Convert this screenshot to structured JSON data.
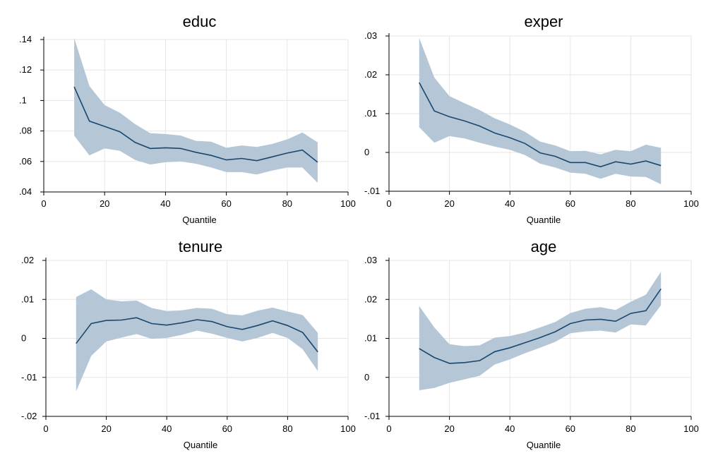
{
  "chart_data": [
    {
      "type": "line",
      "title": "educ",
      "xlabel": "Quantile",
      "ylabel": "",
      "xlim": [
        0,
        100
      ],
      "ylim": [
        0.04,
        0.14
      ],
      "xticks": [
        0,
        20,
        40,
        60,
        80,
        100
      ],
      "xtick_labels": [
        "0",
        "20",
        "40",
        "60",
        "80",
        "100"
      ],
      "yticks": [
        0.04,
        0.06,
        0.08,
        0.1,
        0.12,
        0.14
      ],
      "ytick_labels": [
        ".04",
        ".06",
        ".08",
        ".1",
        ".12",
        ".14"
      ],
      "grid": true,
      "x": [
        10,
        15,
        20,
        25,
        30,
        35,
        40,
        45,
        50,
        55,
        60,
        65,
        70,
        75,
        80,
        85,
        90
      ],
      "series": [
        {
          "values": [
            0.109,
            0.0865,
            0.083,
            0.0795,
            0.0725,
            0.0685,
            0.069,
            0.0685,
            0.066,
            0.064,
            0.061,
            0.062,
            0.0605,
            0.063,
            0.0655,
            0.0675,
            0.0595
          ]
        }
      ],
      "band_upper": [
        0.141,
        0.1095,
        0.097,
        0.092,
        0.0845,
        0.0785,
        0.078,
        0.077,
        0.0735,
        0.073,
        0.069,
        0.0705,
        0.0695,
        0.0715,
        0.0745,
        0.079,
        0.0725
      ],
      "band_lower": [
        0.077,
        0.064,
        0.0685,
        0.067,
        0.061,
        0.058,
        0.0595,
        0.06,
        0.0585,
        0.056,
        0.053,
        0.053,
        0.0515,
        0.054,
        0.056,
        0.056,
        0.046
      ],
      "colors": {
        "line": "#1a476f",
        "band": "#b5c7d6"
      }
    },
    {
      "type": "line",
      "title": "exper",
      "xlabel": "Quantile",
      "ylabel": "",
      "xlim": [
        0,
        100
      ],
      "ylim": [
        -0.01,
        0.03
      ],
      "xticks": [
        0,
        20,
        40,
        60,
        80,
        100
      ],
      "xtick_labels": [
        "0",
        "20",
        "40",
        "60",
        "80",
        "100"
      ],
      "yticks": [
        -0.01,
        0,
        0.01,
        0.02,
        0.03
      ],
      "ytick_labels": [
        "-.01",
        "0",
        ".01",
        ".02",
        ".03"
      ],
      "grid": true,
      "x": [
        10,
        15,
        20,
        25,
        30,
        35,
        40,
        45,
        50,
        55,
        60,
        65,
        70,
        75,
        80,
        85,
        90
      ],
      "series": [
        {
          "values": [
            0.018,
            0.0107,
            0.0092,
            0.0081,
            0.0068,
            0.005,
            0.0038,
            0.0023,
            -0.0001,
            -0.001,
            -0.0026,
            -0.0026,
            -0.0037,
            -0.0024,
            -0.003,
            -0.0022,
            -0.0034
          ]
        }
      ],
      "band_upper": [
        0.0295,
        0.0193,
        0.0145,
        0.0127,
        0.0109,
        0.0088,
        0.0072,
        0.0053,
        0.0028,
        0.0018,
        0.0003,
        0.0004,
        -0.0005,
        0.0007,
        0.0003,
        0.002,
        0.0012
      ],
      "band_lower": [
        0.0065,
        0.0025,
        0.0042,
        0.0036,
        0.0025,
        0.0015,
        0.0007,
        -0.0007,
        -0.0029,
        -0.0039,
        -0.0052,
        -0.0055,
        -0.0068,
        -0.0055,
        -0.0062,
        -0.0063,
        -0.0082
      ],
      "colors": {
        "line": "#1a476f",
        "band": "#b5c7d6"
      }
    },
    {
      "type": "line",
      "title": "tenure",
      "xlabel": "Quantile",
      "ylabel": "",
      "xlim": [
        0,
        100
      ],
      "ylim": [
        -0.02,
        0.02
      ],
      "xticks": [
        0,
        20,
        40,
        60,
        80,
        100
      ],
      "xtick_labels": [
        "0",
        "20",
        "40",
        "60",
        "80",
        "100"
      ],
      "yticks": [
        -0.02,
        -0.01,
        0,
        0.01,
        0.02
      ],
      "ytick_labels": [
        "-.02",
        "-.01",
        "0",
        ".01",
        ".02"
      ],
      "grid": true,
      "x": [
        10,
        15,
        20,
        25,
        30,
        35,
        40,
        45,
        50,
        55,
        60,
        65,
        70,
        75,
        80,
        85,
        90
      ],
      "series": [
        {
          "values": [
            -0.0013,
            0.0038,
            0.0046,
            0.0047,
            0.0053,
            0.0038,
            0.0034,
            0.004,
            0.0048,
            0.0043,
            0.003,
            0.0023,
            0.0033,
            0.0045,
            0.0033,
            0.0015,
            -0.0035
          ]
        }
      ],
      "band_upper": [
        0.0106,
        0.0126,
        0.01,
        0.0095,
        0.0097,
        0.0078,
        0.007,
        0.0072,
        0.0078,
        0.0076,
        0.0062,
        0.0059,
        0.0071,
        0.0079,
        0.0069,
        0.006,
        0.0014
      ],
      "band_lower": [
        -0.0136,
        -0.0045,
        -0.0008,
        0.0002,
        0.0011,
        -0.0001,
        0.0001,
        0.0009,
        0.002,
        0.0012,
        0.0001,
        -0.0008,
        0.0001,
        0.0014,
        0.0001,
        -0.0028,
        -0.0084
      ],
      "colors": {
        "line": "#1a476f",
        "band": "#b5c7d6"
      }
    },
    {
      "type": "line",
      "title": "age",
      "xlabel": "Quantile",
      "ylabel": "",
      "xlim": [
        0,
        100
      ],
      "ylim": [
        -0.01,
        0.03
      ],
      "xticks": [
        0,
        20,
        40,
        60,
        80,
        100
      ],
      "xtick_labels": [
        "0",
        "20",
        "40",
        "60",
        "80",
        "100"
      ],
      "yticks": [
        -0.01,
        0,
        0.01,
        0.02,
        0.03
      ],
      "ytick_labels": [
        "-.01",
        "0",
        ".01",
        ".02",
        ".03"
      ],
      "grid": true,
      "x": [
        10,
        15,
        20,
        25,
        30,
        35,
        40,
        45,
        50,
        55,
        60,
        65,
        70,
        75,
        80,
        85,
        90
      ],
      "series": [
        {
          "values": [
            0.0074,
            0.0051,
            0.0036,
            0.0038,
            0.0043,
            0.0066,
            0.0076,
            0.0089,
            0.0102,
            0.0117,
            0.0138,
            0.0147,
            0.0149,
            0.0144,
            0.0164,
            0.0171,
            0.0227
          ]
        }
      ],
      "band_upper": [
        0.0183,
        0.0128,
        0.0085,
        0.008,
        0.0082,
        0.0102,
        0.0106,
        0.0115,
        0.0128,
        0.0142,
        0.0165,
        0.0176,
        0.018,
        0.0173,
        0.0194,
        0.0212,
        0.0271
      ],
      "band_lower": [
        -0.0033,
        -0.0027,
        -0.0014,
        -0.0005,
        0.0004,
        0.0033,
        0.0046,
        0.0062,
        0.0076,
        0.0091,
        0.0113,
        0.0118,
        0.012,
        0.0115,
        0.0136,
        0.0133,
        0.0185
      ],
      "colors": {
        "line": "#1a476f",
        "band": "#b5c7d6"
      }
    }
  ]
}
